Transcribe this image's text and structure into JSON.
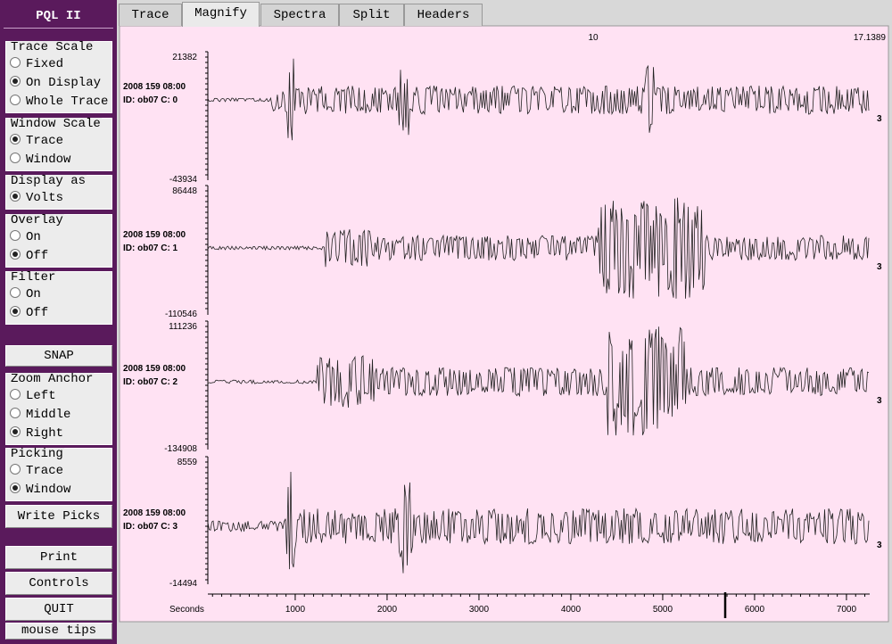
{
  "sidebar": {
    "title": "PQL II",
    "groups": [
      {
        "label": "Trace Scale",
        "options": [
          "Fixed",
          "On Display",
          "Whole Trace"
        ],
        "selected": 1
      },
      {
        "label": "Window Scale",
        "options": [
          "Trace",
          "Window"
        ],
        "selected": 0
      },
      {
        "label": "Display as",
        "options": [
          "Volts"
        ],
        "selected": 0
      },
      {
        "label": "Overlay",
        "options": [
          "On",
          "Off"
        ],
        "selected": 1
      },
      {
        "label": "Filter",
        "options": [
          "On",
          "Off"
        ],
        "selected": 1
      },
      {
        "label": "Zoom Anchor",
        "options": [
          "Left",
          "Middle",
          "Right"
        ],
        "selected": 2
      },
      {
        "label": "Picking",
        "options": [
          "Trace",
          "Window"
        ],
        "selected": 1
      }
    ],
    "buttons": [
      "SNAP",
      "Write Picks",
      "Print",
      "Controls",
      "QUIT",
      "mouse tips"
    ]
  },
  "tabs": {
    "items": [
      "Trace",
      "Magnify",
      "Spectra",
      "Split",
      "Headers"
    ],
    "active": 1
  },
  "plot": {
    "top_labels": [
      10,
      17.1389
    ],
    "traces": [
      {
        "max": 21382,
        "min": -43934,
        "time": "2008 159 08:00",
        "id": "ID: ob07 C: 0",
        "scale": 3
      },
      {
        "max": 86448,
        "min": -110546,
        "time": "2008 159 08:00",
        "id": "ID: ob07 C: 1",
        "scale": 3
      },
      {
        "max": 111236,
        "min": -134908,
        "time": "2008 159 08:00",
        "id": "ID: ob07 C: 2",
        "scale": 3
      },
      {
        "max": 8559,
        "min": -14494,
        "time": "2008 159 08:00",
        "id": "ID: ob07 C: 3",
        "scale": 3
      }
    ],
    "x_axis": {
      "label": "Seconds",
      "xlim": [
        49,
        7253
      ],
      "xticks": [
        1000,
        2000,
        3000,
        4000,
        5000,
        6000,
        7000
      ]
    }
  }
}
